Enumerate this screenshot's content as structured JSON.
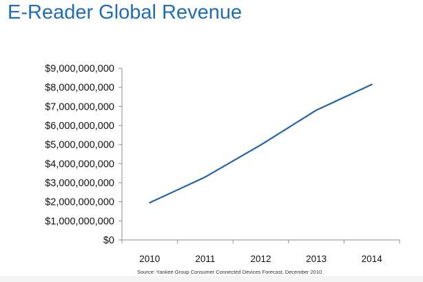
{
  "chart_data": {
    "type": "line",
    "title": "E-Reader Global Revenue",
    "xlabel": "",
    "ylabel": "",
    "categories": [
      "2010",
      "2011",
      "2012",
      "2013",
      "2014"
    ],
    "series": [
      {
        "name": "Revenue",
        "values": [
          1950000000,
          3300000000,
          4980000000,
          6800000000,
          8150000000
        ],
        "color": "#1f63ad"
      }
    ],
    "yticks": [
      0,
      1000000000,
      2000000000,
      3000000000,
      4000000000,
      5000000000,
      6000000000,
      7000000000,
      8000000000,
      9000000000
    ],
    "ytick_labels": [
      "$0",
      "$1,000,000,000",
      "$2,000,000,000",
      "$3,000,000,000",
      "$4,000,000,000",
      "$5,000,000,000",
      "$6,000,000,000",
      "$7,000,000,000",
      "$8,000,000,000",
      "$9,000,000,000"
    ],
    "ylim": [
      0,
      9000000000
    ],
    "grid": false,
    "legend": "none",
    "source": "Source: Yankee Group Consumer Connected Devices Forecast, December 2010"
  }
}
